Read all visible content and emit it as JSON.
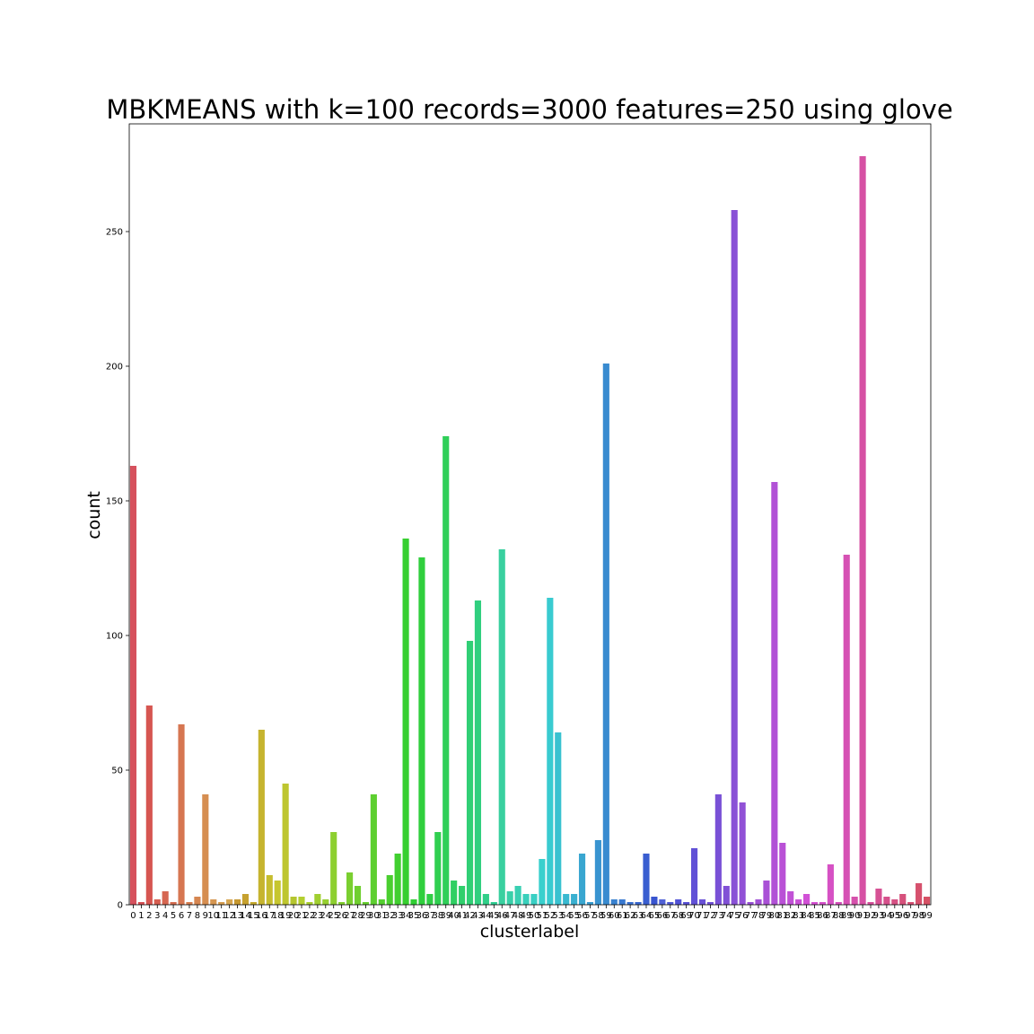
{
  "chart_data": {
    "type": "bar",
    "title": "MBKMEANS with k=100 records=3000 features=250 using glove",
    "xlabel": "clusterlabel",
    "ylabel": "count",
    "ylim": [
      0,
      290
    ],
    "yticks": [
      0,
      50,
      100,
      150,
      200,
      250
    ],
    "grid": false,
    "legend": "none",
    "categories": [
      "0",
      "1",
      "2",
      "3",
      "4",
      "5",
      "6",
      "7",
      "8",
      "9",
      "10",
      "11",
      "12",
      "13",
      "14",
      "15",
      "16",
      "17",
      "18",
      "19",
      "20",
      "21",
      "22",
      "23",
      "24",
      "25",
      "26",
      "27",
      "28",
      "29",
      "30",
      "31",
      "32",
      "33",
      "34",
      "35",
      "36",
      "37",
      "38",
      "39",
      "40",
      "41",
      "42",
      "43",
      "44",
      "45",
      "46",
      "47",
      "48",
      "49",
      "50",
      "51",
      "52",
      "53",
      "54",
      "55",
      "56",
      "57",
      "58",
      "59",
      "60",
      "61",
      "62",
      "63",
      "64",
      "65",
      "66",
      "67",
      "68",
      "69",
      "70",
      "71",
      "72",
      "73",
      "74",
      "75",
      "76",
      "77",
      "78",
      "79",
      "80",
      "81",
      "82",
      "83",
      "84",
      "85",
      "86",
      "87",
      "88",
      "89",
      "90",
      "91",
      "92",
      "93",
      "94",
      "95",
      "96",
      "97",
      "98",
      "99"
    ],
    "values": [
      163,
      1,
      74,
      2,
      5,
      1,
      67,
      1,
      3,
      41,
      2,
      1,
      2,
      2,
      4,
      1,
      65,
      11,
      9,
      45,
      3,
      3,
      1,
      4,
      2,
      27,
      1,
      12,
      7,
      1,
      41,
      2,
      11,
      19,
      136,
      2,
      129,
      4,
      27,
      174,
      9,
      7,
      98,
      113,
      4,
      1,
      132,
      5,
      7,
      4,
      4,
      17,
      114,
      64,
      4,
      4,
      19,
      1,
      24,
      201,
      2,
      2,
      1,
      1,
      19,
      3,
      2,
      1,
      2,
      1,
      21,
      2,
      1,
      41,
      7,
      258,
      38,
      1,
      2,
      9,
      157,
      23,
      5,
      2,
      4,
      1,
      1,
      15,
      1,
      130,
      3,
      278,
      1,
      6,
      3,
      2,
      4,
      1,
      8,
      3
    ]
  }
}
